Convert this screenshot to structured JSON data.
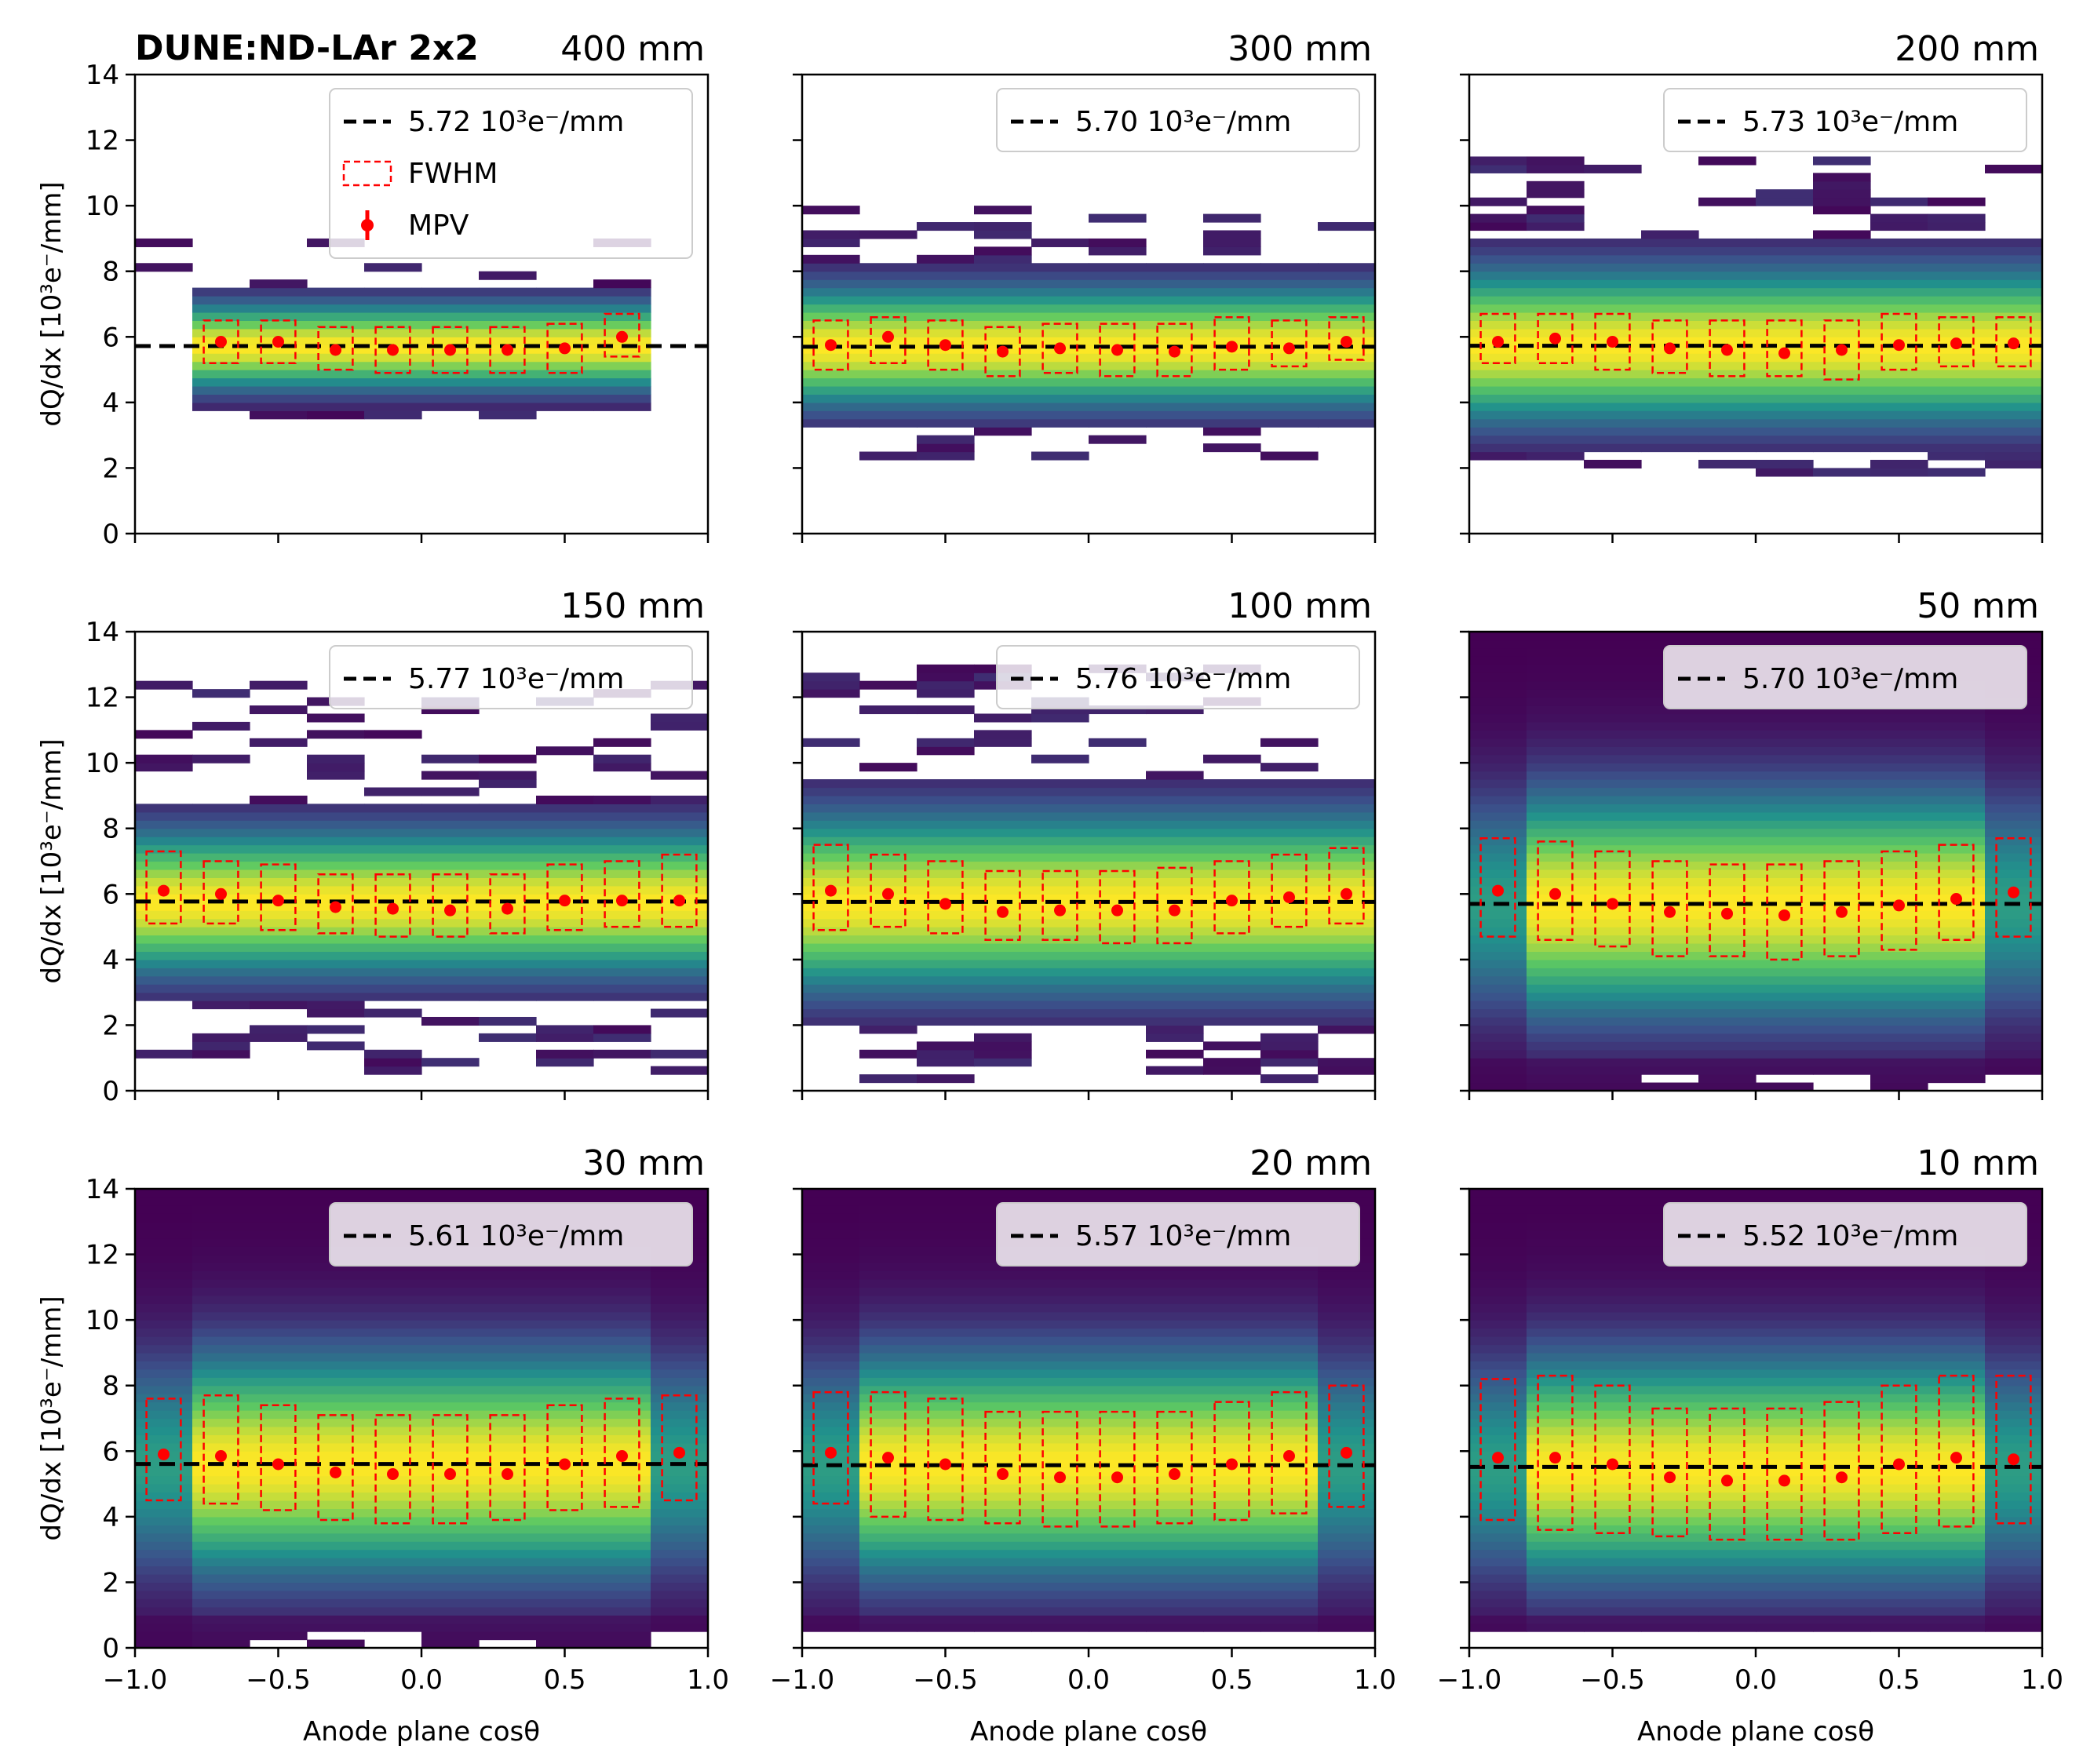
{
  "figure": {
    "experiment_label": "DUNE:ND-LAr 2x2",
    "x_axis_label": "Anode plane cosθ",
    "y_axis_label": "dQ/dx [10³e⁻/mm]",
    "legend": {
      "reference_suffix": " 10³e⁻/mm",
      "fwhm_label": "FWHM",
      "mpv_label": "MPV"
    },
    "colors": {
      "mpv_marker": "#ff0000",
      "fwhm_box": "#ff0000",
      "reference_line": "#000000",
      "colormap": [
        "#440154",
        "#3b528b",
        "#21918c",
        "#5ec962",
        "#fde725"
      ]
    }
  },
  "chart_data": [
    {
      "type": "heatmap",
      "title": "400 mm",
      "reference_value": "5.72",
      "xlim": [
        -1,
        1
      ],
      "ylim": [
        0,
        14
      ],
      "x_ticks": [
        "−1.0",
        "−0.5",
        "0.0",
        "0.5",
        "1.0"
      ],
      "y_ticks": [
        "0",
        "2",
        "4",
        "6",
        "8",
        "10",
        "12",
        "14"
      ],
      "x_bin_centers": [
        -0.7,
        -0.5,
        -0.3,
        -0.1,
        0.1,
        0.3,
        0.5,
        0.7
      ],
      "mpv": [
        5.85,
        5.85,
        5.6,
        5.6,
        5.6,
        5.6,
        5.65,
        6.0
      ],
      "fwhm_low": [
        5.2,
        5.2,
        5.0,
        4.9,
        4.9,
        4.9,
        4.9,
        5.4
      ],
      "fwhm_high": [
        6.5,
        6.5,
        6.3,
        6.3,
        6.3,
        6.3,
        6.4,
        6.7
      ],
      "hist_ymin": 3.5,
      "hist_ymax": 9.0,
      "hist_style": "sparse",
      "legend_full": true
    },
    {
      "type": "heatmap",
      "title": "300 mm",
      "reference_value": "5.70",
      "xlim": [
        -1,
        1
      ],
      "ylim": [
        0,
        14
      ],
      "x_ticks": [
        "−1.0",
        "−0.5",
        "0.0",
        "0.5",
        "1.0"
      ],
      "y_ticks": [],
      "x_bin_centers": [
        -0.9,
        -0.7,
        -0.5,
        -0.3,
        -0.1,
        0.1,
        0.3,
        0.5,
        0.7,
        0.9
      ],
      "mpv": [
        5.75,
        6.0,
        5.75,
        5.55,
        5.65,
        5.6,
        5.55,
        5.7,
        5.65,
        5.85
      ],
      "fwhm_low": [
        5.0,
        5.2,
        5.0,
        4.8,
        4.9,
        4.8,
        4.8,
        5.0,
        5.1,
        5.3
      ],
      "fwhm_high": [
        6.5,
        6.6,
        6.5,
        6.3,
        6.4,
        6.4,
        6.4,
        6.6,
        6.5,
        6.6
      ],
      "hist_ymin": 2.2,
      "hist_ymax": 10.0,
      "hist_style": "sparse",
      "legend_full": false
    },
    {
      "type": "heatmap",
      "title": "200 mm",
      "reference_value": "5.73",
      "xlim": [
        -1,
        1
      ],
      "ylim": [
        0,
        14
      ],
      "x_ticks": [
        "−1.0",
        "−0.5",
        "0.0",
        "0.5",
        "1.0"
      ],
      "y_ticks": [],
      "x_bin_centers": [
        -0.9,
        -0.7,
        -0.5,
        -0.3,
        -0.1,
        0.1,
        0.3,
        0.5,
        0.7,
        0.9
      ],
      "mpv": [
        5.85,
        5.95,
        5.85,
        5.65,
        5.6,
        5.5,
        5.6,
        5.75,
        5.8,
        5.8
      ],
      "fwhm_low": [
        5.2,
        5.2,
        5.0,
        4.9,
        4.8,
        4.8,
        4.7,
        5.0,
        5.1,
        5.1
      ],
      "fwhm_high": [
        6.7,
        6.7,
        6.7,
        6.5,
        6.5,
        6.5,
        6.5,
        6.7,
        6.6,
        6.6
      ],
      "hist_ymin": 1.8,
      "hist_ymax": 11.8,
      "hist_style": "sparse",
      "legend_full": false
    },
    {
      "type": "heatmap",
      "title": "150 mm",
      "reference_value": "5.77",
      "xlim": [
        -1,
        1
      ],
      "ylim": [
        0,
        14
      ],
      "x_ticks": [
        "−1.0",
        "−0.5",
        "0.0",
        "0.5",
        "1.0"
      ],
      "y_ticks": [
        "0",
        "2",
        "4",
        "6",
        "8",
        "10",
        "12",
        "14"
      ],
      "x_bin_centers": [
        -0.9,
        -0.7,
        -0.5,
        -0.3,
        -0.1,
        0.1,
        0.3,
        0.5,
        0.7,
        0.9
      ],
      "mpv": [
        6.1,
        6.0,
        5.8,
        5.6,
        5.55,
        5.5,
        5.55,
        5.8,
        5.8,
        5.8
      ],
      "fwhm_low": [
        5.1,
        5.1,
        4.9,
        4.8,
        4.7,
        4.7,
        4.8,
        4.9,
        5.0,
        5.0
      ],
      "fwhm_high": [
        7.3,
        7.0,
        6.9,
        6.6,
        6.6,
        6.6,
        6.6,
        6.9,
        7.0,
        7.2
      ],
      "hist_ymin": 0.5,
      "hist_ymax": 12.6,
      "hist_style": "sparse",
      "legend_full": false
    },
    {
      "type": "heatmap",
      "title": "100 mm",
      "reference_value": "5.76",
      "xlim": [
        -1,
        1
      ],
      "ylim": [
        0,
        14
      ],
      "x_ticks": [
        "−1.0",
        "−0.5",
        "0.0",
        "0.5",
        "1.0"
      ],
      "y_ticks": [],
      "x_bin_centers": [
        -0.9,
        -0.7,
        -0.5,
        -0.3,
        -0.1,
        0.1,
        0.3,
        0.5,
        0.7,
        0.9
      ],
      "mpv": [
        6.1,
        6.0,
        5.7,
        5.45,
        5.5,
        5.5,
        5.5,
        5.8,
        5.9,
        6.0
      ],
      "fwhm_low": [
        4.9,
        5.0,
        4.8,
        4.6,
        4.6,
        4.5,
        4.5,
        4.8,
        5.0,
        5.1
      ],
      "fwhm_high": [
        7.5,
        7.2,
        7.0,
        6.7,
        6.7,
        6.7,
        6.8,
        7.0,
        7.2,
        7.4
      ],
      "hist_ymin": 0.2,
      "hist_ymax": 13.0,
      "hist_style": "sparse",
      "legend_full": false
    },
    {
      "type": "heatmap",
      "title": "50 mm",
      "reference_value": "5.70",
      "xlim": [
        -1,
        1
      ],
      "ylim": [
        0,
        14
      ],
      "x_ticks": [
        "−1.0",
        "−0.5",
        "0.0",
        "0.5",
        "1.0"
      ],
      "y_ticks": [],
      "x_bin_centers": [
        -0.9,
        -0.7,
        -0.5,
        -0.3,
        -0.1,
        0.1,
        0.3,
        0.5,
        0.7,
        0.9
      ],
      "mpv": [
        6.1,
        6.0,
        5.7,
        5.45,
        5.4,
        5.35,
        5.45,
        5.65,
        5.85,
        6.05
      ],
      "fwhm_low": [
        4.7,
        4.6,
        4.4,
        4.1,
        4.1,
        4.0,
        4.1,
        4.3,
        4.6,
        4.7
      ],
      "fwhm_high": [
        7.7,
        7.6,
        7.3,
        7.0,
        6.9,
        6.9,
        7.0,
        7.3,
        7.5,
        7.7
      ],
      "hist_ymin": 0.0,
      "hist_ymax": 14.0,
      "hist_style": "dense",
      "legend_full": false
    },
    {
      "type": "heatmap",
      "title": "30 mm",
      "reference_value": "5.61",
      "xlim": [
        -1,
        1
      ],
      "ylim": [
        0,
        14
      ],
      "x_ticks": [
        "−1.0",
        "−0.5",
        "0.0",
        "0.5",
        "1.0"
      ],
      "y_ticks": [
        "0",
        "2",
        "4",
        "6",
        "8",
        "10",
        "12",
        "14"
      ],
      "x_bin_centers": [
        -0.9,
        -0.7,
        -0.5,
        -0.3,
        -0.1,
        0.1,
        0.3,
        0.5,
        0.7,
        0.9
      ],
      "mpv": [
        5.9,
        5.85,
        5.6,
        5.35,
        5.3,
        5.3,
        5.3,
        5.6,
        5.85,
        5.95
      ],
      "fwhm_low": [
        4.5,
        4.4,
        4.2,
        3.9,
        3.8,
        3.8,
        3.9,
        4.2,
        4.3,
        4.5
      ],
      "fwhm_high": [
        7.6,
        7.7,
        7.4,
        7.1,
        7.1,
        7.1,
        7.1,
        7.4,
        7.6,
        7.7
      ],
      "hist_ymin": 0.0,
      "hist_ymax": 14.0,
      "hist_style": "dense",
      "legend_full": false
    },
    {
      "type": "heatmap",
      "title": "20 mm",
      "reference_value": "5.57",
      "xlim": [
        -1,
        1
      ],
      "ylim": [
        0,
        14
      ],
      "x_ticks": [
        "−1.0",
        "−0.5",
        "0.0",
        "0.5",
        "1.0"
      ],
      "y_ticks": [],
      "x_bin_centers": [
        -0.9,
        -0.7,
        -0.5,
        -0.3,
        -0.1,
        0.1,
        0.3,
        0.5,
        0.7,
        0.9
      ],
      "mpv": [
        5.95,
        5.8,
        5.6,
        5.3,
        5.2,
        5.2,
        5.3,
        5.6,
        5.85,
        5.95
      ],
      "fwhm_low": [
        4.4,
        4.0,
        3.9,
        3.8,
        3.7,
        3.7,
        3.8,
        3.9,
        4.1,
        4.3
      ],
      "fwhm_high": [
        7.8,
        7.8,
        7.6,
        7.2,
        7.2,
        7.2,
        7.2,
        7.5,
        7.8,
        8.0
      ],
      "hist_ymin": 0.4,
      "hist_ymax": 14.0,
      "hist_style": "dense",
      "legend_full": false
    },
    {
      "type": "heatmap",
      "title": "10 mm",
      "reference_value": "5.52",
      "xlim": [
        -1,
        1
      ],
      "ylim": [
        0,
        14
      ],
      "x_ticks": [
        "−1.0",
        "−0.5",
        "0.0",
        "0.5",
        "1.0"
      ],
      "y_ticks": [],
      "x_bin_centers": [
        -0.9,
        -0.7,
        -0.5,
        -0.3,
        -0.1,
        0.1,
        0.3,
        0.5,
        0.7,
        0.9
      ],
      "mpv": [
        5.8,
        5.8,
        5.6,
        5.2,
        5.1,
        5.1,
        5.2,
        5.6,
        5.8,
        5.75
      ],
      "fwhm_low": [
        3.9,
        3.6,
        3.5,
        3.4,
        3.3,
        3.3,
        3.3,
        3.5,
        3.7,
        3.8
      ],
      "fwhm_high": [
        8.2,
        8.3,
        8.0,
        7.3,
        7.3,
        7.3,
        7.5,
        8.0,
        8.3,
        8.3
      ],
      "hist_ymin": 0.4,
      "hist_ymax": 14.0,
      "hist_style": "dense",
      "legend_full": false
    }
  ]
}
